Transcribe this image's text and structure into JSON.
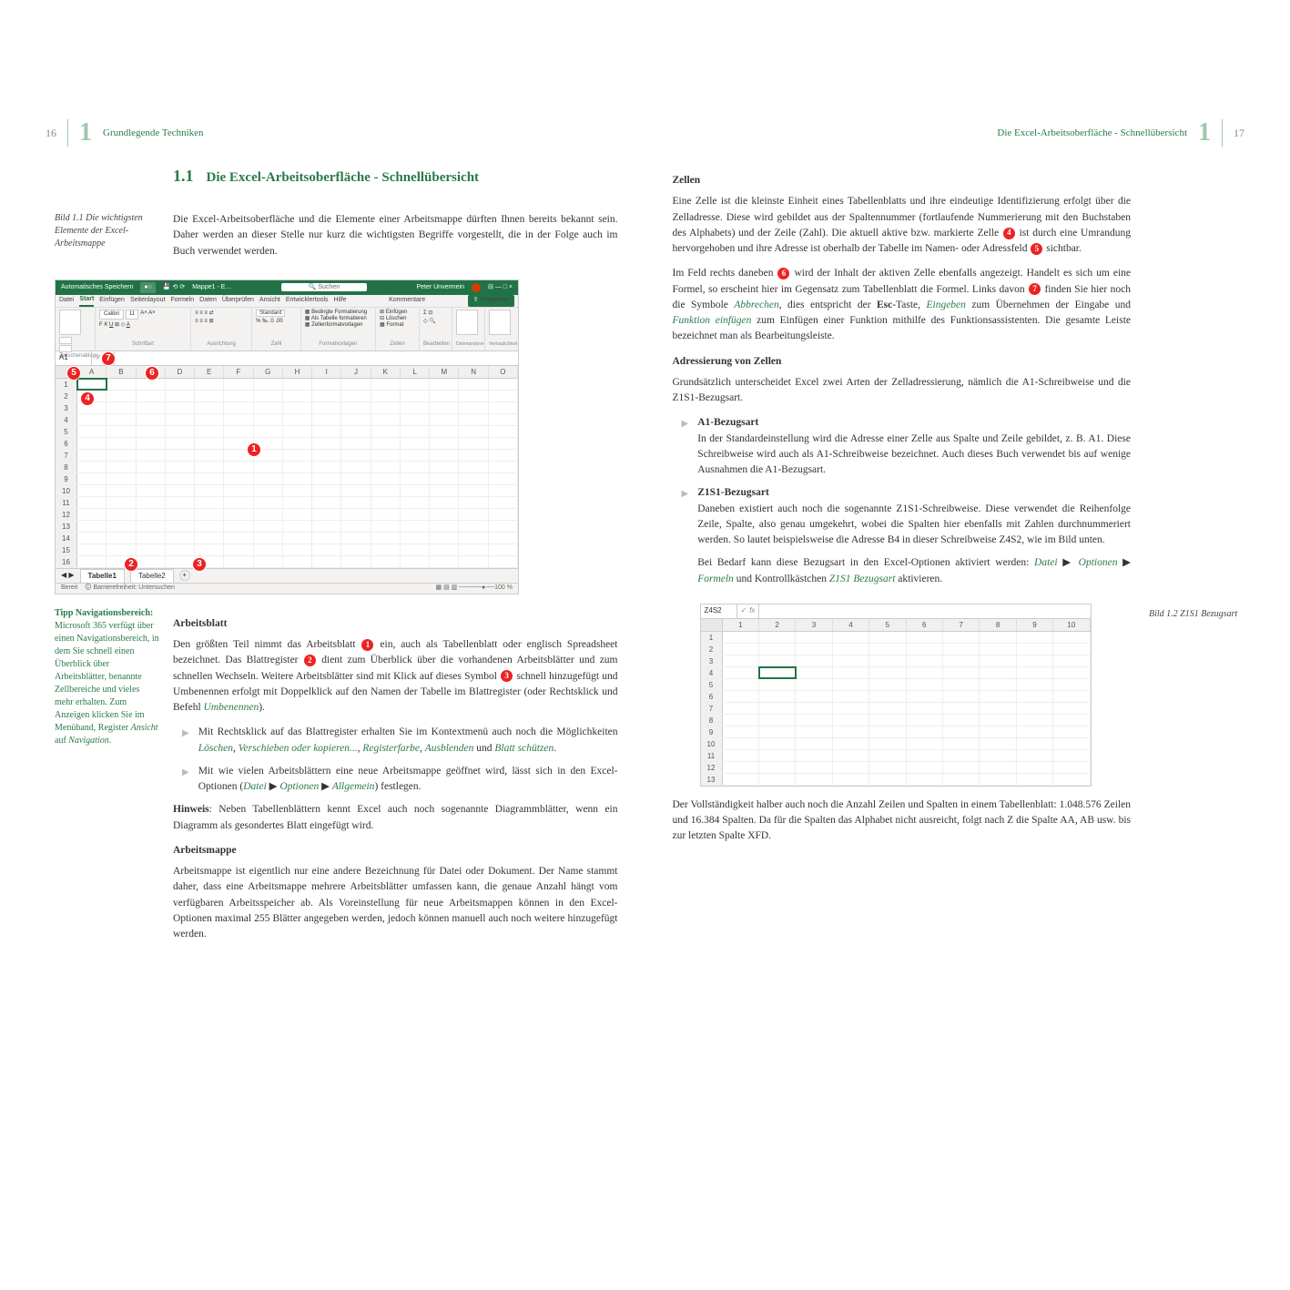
{
  "leftPage": {
    "pageNum": "16",
    "chapNum": "1",
    "runningTitle": "Grundlegende Techniken",
    "section": {
      "num": "1.1",
      "title": "Die Excel-Arbeitsoberfläche - Schnellübersicht"
    },
    "intro": "Die Excel-Arbeitsoberfläche und die Elemente einer Arbeitsmappe dürften Ihnen bereits bekannt sein. Daher werden an dieser Stelle nur kurz die wichtigsten Begriffe vorgestellt, die in der Folge auch im Buch verwendet werden.",
    "caption": "Bild 1.1 Die wichtigsten Elemente der Excel-Arbeitsmappe",
    "sidenoteTitle": "Tipp Navigationsbereich:",
    "sidenoteBody": "Microsoft 365 verfügt über einen Navigationsbereich, in dem Sie schnell einen Überblick über Arbeitsblätter, benannte Zellbereiche und vieles mehr erhalten. Zum Anzeigen klicken Sie im Menüband, Register ",
    "sidenoteItalic1": "Ansicht",
    "sidenoteMid": " auf ",
    "sidenoteItalic2": "Navigation",
    "sidenotePeriod": ".",
    "sub1": "Arbeitsblatt",
    "p1a": "Den größten Teil nimmt das Arbeitsblatt ",
    "p1b": " ein, auch als Tabellenblatt oder englisch Spreadsheet bezeichnet. Das Blattregister ",
    "p1c": " dient zum Überblick über die vorhandenen Arbeitsblätter und zum schnellen Wechseln. Weitere Arbeitsblätter sind mit Klick auf dieses Symbol ",
    "p1d": " schnell hinzugefügt und Umbenennen erfolgt mit Doppelklick auf den Namen der Tabelle im Blattregister (oder Rechtsklick und Befehl ",
    "p1e": "Umbenennen",
    "p1f": ").",
    "b1a": "Mit Rechtsklick auf das Blattregister erhalten Sie im Kontextmenü auch noch die Möglichkeiten ",
    "b1b": "Löschen",
    "b1c": ", ",
    "b1d": "Verschieben oder kopieren...",
    "b1e": ", ",
    "b1f": "Registerfarbe",
    "b1g": ", ",
    "b1h": "Ausblenden",
    "b1i": " und ",
    "b1j": "Blatt schützen",
    "b1k": ".",
    "b2a": "Mit wie vielen Arbeitsblättern eine neue Arbeitsmappe geöffnet wird, lässt sich in den Excel-Optionen (",
    "b2b": "Datei",
    "b2c": " ▶ ",
    "b2d": "Optionen",
    "b2e": " ▶ ",
    "b2f": "Allgemein",
    "b2g": ") festlegen.",
    "hinweis": "Hinweis",
    "hinweisText": ": Neben Tabellenblättern kennt Excel auch noch sogenannte Diagrammblätter, wenn ein Diagramm als gesondertes Blatt eingefügt wird.",
    "sub2": "Arbeitsmappe",
    "p2": "Arbeitsmappe ist eigentlich nur eine andere Bezeichnung für Datei oder Dokument. Der Name stammt daher, dass eine Arbeitsmappe mehrere Arbeitsblätter umfassen kann, die genaue Anzahl hängt vom verfügbaren Arbeitsspeicher ab. Als Voreinstellung für neue Arbeitsmappen können in den Excel-Optionen maximal 255 Blätter angegeben werden, jedoch können manuell auch noch weitere hinzugefügt werden."
  },
  "rightPage": {
    "pageNum": "17",
    "chapNum": "1",
    "runningTitle": "Die Excel-Arbeitsoberfläche - Schnellübersicht",
    "sub1": "Zellen",
    "p1a": "Eine Zelle ist die kleinste Einheit eines Tabellenblatts und ihre eindeutige Identifizierung erfolgt über die Zelladresse. Diese wird gebildet aus der Spaltennummer (fortlaufende Nummerierung mit den Buchstaben des Alphabets) und der Zeile (Zahl). Die aktuell aktive bzw. markierte Zelle ",
    "p1b": " ist durch eine Umrandung hervorgehoben und ihre Adresse ist oberhalb der Tabelle im Namen- oder Adressfeld ",
    "p1c": " sichtbar.",
    "p2a": "Im Feld rechts daneben ",
    "p2b": " wird der Inhalt der aktiven Zelle ebenfalls angezeigt. Handelt es sich um eine Formel, so erscheint hier im Gegensatz zum Tabellenblatt die Formel. Links davon ",
    "p2c": " finden Sie hier noch die Symbole ",
    "p2d": "Abbrechen",
    "p2e": ", dies entspricht der ",
    "p2f": "Esc",
    "p2g": "-Taste, ",
    "p2h": "Eingeben",
    "p2i": " zum Übernehmen der Eingabe und ",
    "p2j": "Funktion einfügen",
    "p2k": " zum Einfügen einer Funktion mithilfe des Funktionsassistenten. Die gesamte Leiste bezeichnet man als Bearbeitungsleiste.",
    "sub2": "Adressierung von Zellen",
    "p3": "Grundsätzlich unterscheidet Excel zwei Arten der Zelladressierung, nämlich die A1-Schreibweise und die Z1S1-Bezugsart.",
    "ba1t": "A1-Bezugsart",
    "ba1": "In der Standardeinstellung wird die Adresse einer Zelle aus Spalte und Zeile gebildet, z. B. A1. Diese Schreibweise wird auch als A1-Schreibweise bezeichnet. Auch dieses Buch verwendet bis auf wenige Ausnahmen die A1-Bezugsart.",
    "ba2t": "Z1S1-Bezugsart",
    "ba2": "Daneben existiert auch noch die sogenannte Z1S1-Schreibweise. Diese verwendet die Reihenfolge Zeile, Spalte, also genau umgekehrt, wobei die Spalten hier ebenfalls mit Zahlen durchnummeriert werden. So lautet beispielsweise die Adresse B4 in dieser Schreibweise Z4S2, wie im Bild unten.",
    "ba3a": "Bei Bedarf kann diese Bezugsart in den Excel-Optionen aktiviert werden: ",
    "ba3b": "Datei",
    "ba3c": " ▶ ",
    "ba3d": "Optionen",
    "ba3e": " ▶ ",
    "ba3f": "Formeln",
    "ba3g": " und Kontrollkästchen ",
    "ba3h": "Z1S1 Bezugsart",
    "ba3i": " aktivieren.",
    "caption2": "Bild 1.2 Z1S1 Bezugsart",
    "p4": "Der Vollständigkeit halber auch noch die Anzahl Zeilen und Spalten in einem Tabellenblatt: 1.048.576 Zeilen und 16.384 Spalten. Da für die Spalten das Alphabet nicht ausreicht, folgt nach Z die Spalte AA, AB usw. bis zur letzten Spalte XFD."
  },
  "excel": {
    "titleAuto": "Automatisches Speichern",
    "titleFile": "Mappe1 - E…",
    "titleSearch": "Suchen",
    "titleUser": "Peter Unvermein",
    "tabs": [
      "Datei",
      "Start",
      "Einfügen",
      "Seitenlayout",
      "Formeln",
      "Daten",
      "Überprüfen",
      "Ansicht",
      "Entwicklertools",
      "Hilfe"
    ],
    "share": "Freigeben",
    "comments": "Kommentare",
    "groups": [
      "Zwischenablage",
      "Schriftart",
      "Ausrichtung",
      "Zahl",
      "Formatvorlagen",
      "Zellen",
      "Bearbeiten",
      "Analyse",
      "Vertraulichkeit"
    ],
    "font": "Calibri",
    "fontsize": "11",
    "numfmt": "Standard",
    "fmt1": "Bedingte Formatierung",
    "fmt2": "Als Tabelle formatieren",
    "fmt3": "Zellenformatvorlagen",
    "cell1": "Einfügen",
    "cell2": "Löschen",
    "cell3": "Format",
    "analysis": "Datenanalyse",
    "sens": "Vertraulichkeit",
    "namebox": "A1",
    "fx": "fx",
    "cols": [
      "A",
      "B",
      "C",
      "D",
      "E",
      "F",
      "G",
      "H",
      "I",
      "J",
      "K",
      "L",
      "M",
      "N",
      "O"
    ],
    "rows": [
      "1",
      "2",
      "3",
      "4",
      "5",
      "6",
      "7",
      "8",
      "9",
      "10",
      "11",
      "12",
      "13",
      "14",
      "15",
      "16"
    ],
    "sheet1": "Tabelle1",
    "sheet2": "Tabelle2",
    "plus": "+",
    "statusL": "Bereit",
    "statusAcc": "Barrierefreiheit: Untersuchen",
    "zoom": "100 %"
  },
  "excelMini": {
    "namebox": "Z4S2",
    "fx": "fx",
    "cols": [
      "1",
      "2",
      "3",
      "4",
      "5",
      "6",
      "7",
      "8",
      "9",
      "10"
    ],
    "rows": [
      "1",
      "2",
      "3",
      "4",
      "5",
      "6",
      "7",
      "8",
      "9",
      "10",
      "11",
      "12",
      "13"
    ]
  },
  "markers": {
    "m1": "1",
    "m2": "2",
    "m3": "3",
    "m4": "4",
    "m5": "5",
    "m6": "6",
    "m7": "7"
  },
  "colors": {
    "excelGreen": "#217346",
    "textGreen": "#2a7a4a",
    "markerRed": "#e22"
  }
}
